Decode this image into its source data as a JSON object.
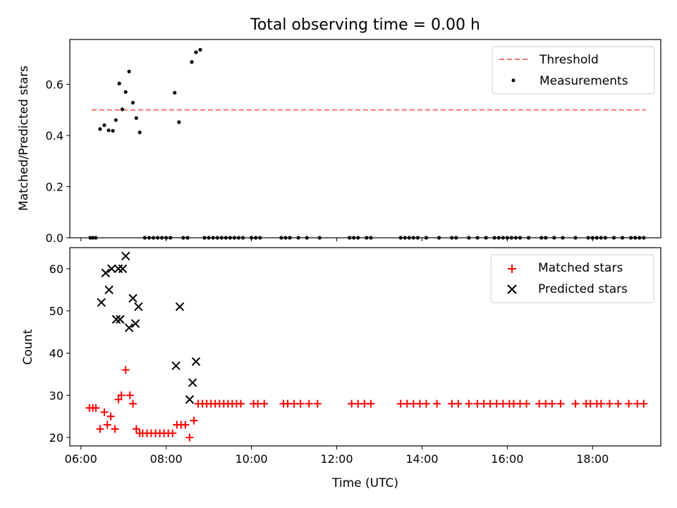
{
  "chart_data": {
    "title": "Total observing time = 0.00 h",
    "xlabel": "Time (UTC)",
    "x_ticks": [
      {
        "value": 6,
        "label": "06:00"
      },
      {
        "value": 8,
        "label": "08:00"
      },
      {
        "value": 10,
        "label": "10:00"
      },
      {
        "value": 12,
        "label": "12:00"
      },
      {
        "value": 14,
        "label": "14:00"
      },
      {
        "value": 16,
        "label": "16:00"
      },
      {
        "value": 18,
        "label": "18:00"
      }
    ],
    "xlim": [
      5.74,
      19.6
    ],
    "panels": [
      {
        "type": "scatter",
        "ylabel": "Matched/Predicted stars",
        "ylim": [
          0,
          0.775
        ],
        "y_ticks": [
          {
            "value": 0,
            "label": "0.0"
          },
          {
            "value": 0.2,
            "label": "0.2"
          },
          {
            "value": 0.4,
            "label": "0.4"
          },
          {
            "value": 0.6,
            "label": "0.6"
          }
        ],
        "legend_position": "top-right",
        "threshold": {
          "name": "Threshold",
          "value": 0.5,
          "x_start": 6.25,
          "x_end": 19.25,
          "color": "#ff7070"
        },
        "series": [
          {
            "name": "Measurements",
            "marker": "dot",
            "color": "#000000",
            "x": [
              6.22,
              6.28,
              6.35,
              6.45,
              6.55,
              6.65,
              6.75,
              6.82,
              6.9,
              6.97,
              7.05,
              7.13,
              7.22,
              7.3,
              7.38,
              7.5,
              7.6,
              7.7,
              7.8,
              7.9,
              8.0,
              8.1,
              8.2,
              8.3,
              8.4,
              8.5,
              8.6,
              8.7,
              8.8,
              8.9,
              9.0,
              9.1,
              9.2,
              9.3,
              9.4,
              9.5,
              9.6,
              9.7,
              9.8,
              10.0,
              10.1,
              10.2,
              10.7,
              10.8,
              10.9,
              11.1,
              11.3,
              11.6,
              12.3,
              12.4,
              12.5,
              12.7,
              12.8,
              13.5,
              13.6,
              13.7,
              13.8,
              13.9,
              14.1,
              14.4,
              14.7,
              14.8,
              15.1,
              15.3,
              15.5,
              15.7,
              15.8,
              15.9,
              16.0,
              16.1,
              16.2,
              16.3,
              16.5,
              16.8,
              16.9,
              17.1,
              17.3,
              17.6,
              17.9,
              18.0,
              18.1,
              18.2,
              18.3,
              18.5,
              18.7,
              18.9,
              19.0,
              19.1,
              19.2
            ],
            "y": [
              0,
              0,
              0,
              0.425,
              0.44,
              0.42,
              0.418,
              0.46,
              0.603,
              0.502,
              0.57,
              0.65,
              0.528,
              0.468,
              0.412,
              0,
              0,
              0,
              0,
              0,
              0,
              0,
              0.567,
              0.452,
              0,
              0,
              0.687,
              0.725,
              0.735,
              0,
              0,
              0,
              0,
              0,
              0,
              0,
              0,
              0,
              0,
              0,
              0,
              0,
              0,
              0,
              0,
              0,
              0,
              0,
              0,
              0,
              0,
              0,
              0,
              0,
              0,
              0,
              0,
              0,
              0,
              0,
              0,
              0,
              0,
              0,
              0,
              0,
              0,
              0,
              0,
              0,
              0,
              0,
              0,
              0,
              0,
              0,
              0,
              0,
              0,
              0,
              0,
              0,
              0,
              0,
              0,
              0,
              0,
              0,
              0
            ]
          }
        ]
      },
      {
        "type": "scatter",
        "ylabel": "Count",
        "ylim": [
          18,
          65
        ],
        "y_ticks": [
          {
            "value": 20,
            "label": "20"
          },
          {
            "value": 30,
            "label": "30"
          },
          {
            "value": 40,
            "label": "40"
          },
          {
            "value": 50,
            "label": "50"
          },
          {
            "value": 60,
            "label": "60"
          }
        ],
        "legend_position": "top-right",
        "series": [
          {
            "name": "Matched stars",
            "marker": "plus",
            "color": "#ff0000",
            "x": [
              6.2,
              6.28,
              6.35,
              6.45,
              6.55,
              6.62,
              6.7,
              6.8,
              6.88,
              6.95,
              7.05,
              7.15,
              7.22,
              7.3,
              7.38,
              7.45,
              7.55,
              7.65,
              7.75,
              7.85,
              7.95,
              8.05,
              8.15,
              8.25,
              8.35,
              8.45,
              8.55,
              8.65,
              8.75,
              8.85,
              8.95,
              9.05,
              9.15,
              9.25,
              9.35,
              9.45,
              9.55,
              9.65,
              9.75,
              10.05,
              10.15,
              10.3,
              10.75,
              10.85,
              11.0,
              11.15,
              11.35,
              11.55,
              12.35,
              12.5,
              12.65,
              12.8,
              13.5,
              13.65,
              13.8,
              13.95,
              14.1,
              14.35,
              14.7,
              14.85,
              15.1,
              15.3,
              15.45,
              15.6,
              15.75,
              15.9,
              16.05,
              16.15,
              16.3,
              16.45,
              16.75,
              16.9,
              17.05,
              17.25,
              17.6,
              17.85,
              17.95,
              18.1,
              18.2,
              18.4,
              18.6,
              18.85,
              19.05,
              19.2
            ],
            "y": [
              27,
              27,
              27,
              22,
              26,
              23,
              25,
              22,
              29,
              30,
              36,
              30,
              28,
              22,
              21,
              21,
              21,
              21,
              21,
              21,
              21,
              21,
              21,
              23,
              23,
              23,
              20,
              24,
              28,
              28,
              28,
              28,
              28,
              28,
              28,
              28,
              28,
              28,
              28,
              28,
              28,
              28,
              28,
              28,
              28,
              28,
              28,
              28,
              28,
              28,
              28,
              28,
              28,
              28,
              28,
              28,
              28,
              28,
              28,
              28,
              28,
              28,
              28,
              28,
              28,
              28,
              28,
              28,
              28,
              28,
              28,
              28,
              28,
              28,
              28,
              28,
              28,
              28,
              28,
              28,
              28,
              28,
              28,
              28
            ]
          },
          {
            "name": "Predicted stars",
            "marker": "x",
            "color": "#000000",
            "x": [
              6.48,
              6.58,
              6.66,
              6.72,
              6.83,
              6.88,
              6.92,
              6.98,
              7.05,
              7.13,
              7.22,
              7.28,
              7.35,
              8.23,
              8.32,
              8.55,
              8.62,
              8.7
            ],
            "y": [
              52,
              59,
              55,
              60,
              48,
              60,
              48,
              60,
              63,
              46,
              53,
              47,
              51,
              37,
              51,
              29,
              33,
              38
            ]
          }
        ]
      }
    ]
  }
}
